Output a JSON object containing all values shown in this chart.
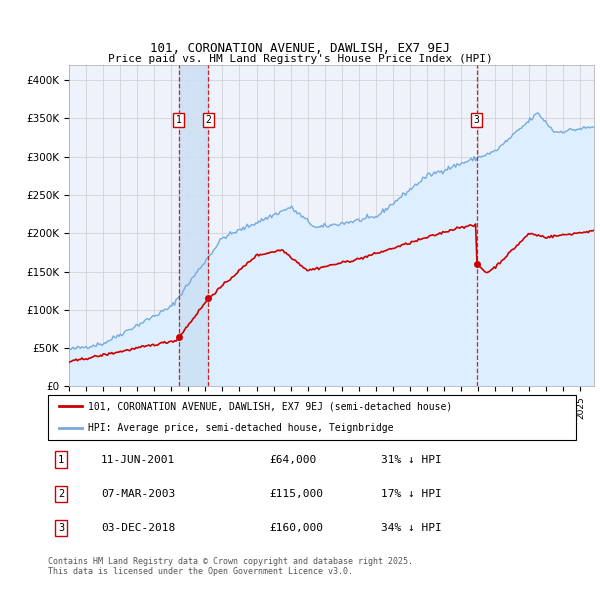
{
  "title": "101, CORONATION AVENUE, DAWLISH, EX7 9EJ",
  "subtitle": "Price paid vs. HM Land Registry's House Price Index (HPI)",
  "ylabel_ticks": [
    "£0",
    "£50K",
    "£100K",
    "£150K",
    "£200K",
    "£250K",
    "£300K",
    "£350K",
    "£400K"
  ],
  "ytick_values": [
    0,
    50000,
    100000,
    150000,
    200000,
    250000,
    300000,
    350000,
    400000
  ],
  "ylim": [
    0,
    420000
  ],
  "xlim_start": 1995.0,
  "xlim_end": 2025.8,
  "red_color": "#cc0000",
  "blue_color": "#77aadd",
  "blue_fill": "#ddeeff",
  "grid_color": "#cccccc",
  "bg_color": "#eef3fb",
  "sale_dates": [
    2001.44,
    2003.18,
    2018.92
  ],
  "sale_prices": [
    64000,
    115000,
    160000
  ],
  "sale_labels": [
    "1",
    "2",
    "3"
  ],
  "transaction_info": [
    {
      "label": "1",
      "date": "11-JUN-2001",
      "price": "£64,000",
      "hpi": "31% ↓ HPI"
    },
    {
      "label": "2",
      "date": "07-MAR-2003",
      "price": "£115,000",
      "hpi": "17% ↓ HPI"
    },
    {
      "label": "3",
      "date": "03-DEC-2018",
      "price": "£160,000",
      "hpi": "34% ↓ HPI"
    }
  ],
  "legend_line1": "101, CORONATION AVENUE, DAWLISH, EX7 9EJ (semi-detached house)",
  "legend_line2": "HPI: Average price, semi-detached house, Teignbridge",
  "footnote": "Contains HM Land Registry data © Crown copyright and database right 2025.\nThis data is licensed under the Open Government Licence v3.0."
}
